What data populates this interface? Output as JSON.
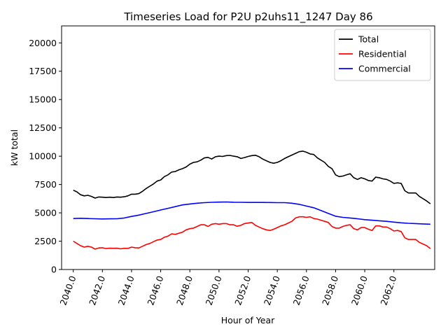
{
  "chart_data": {
    "type": "line",
    "title": "Timeseries Load for P2U p2uhs11_1247  Day 86",
    "xlabel": "Hour of Year",
    "ylabel": "kW total",
    "xlim": [
      2039.2,
      2064.8
    ],
    "ylim": [
      0,
      21500
    ],
    "x_ticks": [
      2040,
      2042,
      2044,
      2046,
      2048,
      2050,
      2052,
      2054,
      2056,
      2058,
      2060,
      2062
    ],
    "x_tick_labels": [
      "2040.0",
      "2042.0",
      "2044.0",
      "2046.0",
      "2048.0",
      "2050.0",
      "2052.0",
      "2054.0",
      "2056.0",
      "2058.0",
      "2060.0",
      "2062.0"
    ],
    "y_ticks": [
      0,
      2500,
      5000,
      7500,
      10000,
      12500,
      15000,
      17500,
      20000
    ],
    "y_tick_labels": [
      "0",
      "2500",
      "5000",
      "7500",
      "10000",
      "12500",
      "15000",
      "17500",
      "20000"
    ],
    "legend_position": "top-right",
    "series": [
      {
        "name": "Total",
        "color": "#000000",
        "points": [
          [
            2040.0,
            7000
          ],
          [
            2040.25,
            6850
          ],
          [
            2040.5,
            6600
          ],
          [
            2040.75,
            6500
          ],
          [
            2041.0,
            6550
          ],
          [
            2041.25,
            6450
          ],
          [
            2041.5,
            6300
          ],
          [
            2041.75,
            6400
          ],
          [
            2042.0,
            6380
          ],
          [
            2042.25,
            6350
          ],
          [
            2042.5,
            6380
          ],
          [
            2042.75,
            6350
          ],
          [
            2043.0,
            6400
          ],
          [
            2043.25,
            6380
          ],
          [
            2043.5,
            6420
          ],
          [
            2043.75,
            6500
          ],
          [
            2044.0,
            6650
          ],
          [
            2044.25,
            6650
          ],
          [
            2044.5,
            6700
          ],
          [
            2044.75,
            6900
          ],
          [
            2045.0,
            7150
          ],
          [
            2045.25,
            7350
          ],
          [
            2045.5,
            7550
          ],
          [
            2045.75,
            7800
          ],
          [
            2046.0,
            7900
          ],
          [
            2046.25,
            8200
          ],
          [
            2046.5,
            8350
          ],
          [
            2046.75,
            8600
          ],
          [
            2047.0,
            8650
          ],
          [
            2047.25,
            8800
          ],
          [
            2047.5,
            8900
          ],
          [
            2047.75,
            9050
          ],
          [
            2048.0,
            9300
          ],
          [
            2048.25,
            9450
          ],
          [
            2048.5,
            9500
          ],
          [
            2048.75,
            9650
          ],
          [
            2049.0,
            9850
          ],
          [
            2049.25,
            9900
          ],
          [
            2049.5,
            9750
          ],
          [
            2049.75,
            9950
          ],
          [
            2050.0,
            10000
          ],
          [
            2050.25,
            9980
          ],
          [
            2050.5,
            10050
          ],
          [
            2050.75,
            10070
          ],
          [
            2051.0,
            10000
          ],
          [
            2051.25,
            9950
          ],
          [
            2051.5,
            9800
          ],
          [
            2051.75,
            9880
          ],
          [
            2052.0,
            9980
          ],
          [
            2052.25,
            10050
          ],
          [
            2052.5,
            10080
          ],
          [
            2052.75,
            9950
          ],
          [
            2053.0,
            9750
          ],
          [
            2053.25,
            9600
          ],
          [
            2053.5,
            9450
          ],
          [
            2053.75,
            9380
          ],
          [
            2054.0,
            9450
          ],
          [
            2054.25,
            9600
          ],
          [
            2054.5,
            9800
          ],
          [
            2054.75,
            9950
          ],
          [
            2055.0,
            10100
          ],
          [
            2055.25,
            10250
          ],
          [
            2055.5,
            10400
          ],
          [
            2055.75,
            10450
          ],
          [
            2056.0,
            10350
          ],
          [
            2056.25,
            10200
          ],
          [
            2056.5,
            10150
          ],
          [
            2056.75,
            9850
          ],
          [
            2057.0,
            9650
          ],
          [
            2057.25,
            9450
          ],
          [
            2057.5,
            9100
          ],
          [
            2057.75,
            8900
          ],
          [
            2058.0,
            8350
          ],
          [
            2058.25,
            8200
          ],
          [
            2058.5,
            8250
          ],
          [
            2058.75,
            8350
          ],
          [
            2059.0,
            8450
          ],
          [
            2059.25,
            8100
          ],
          [
            2059.5,
            7950
          ],
          [
            2059.75,
            8100
          ],
          [
            2060.0,
            8000
          ],
          [
            2060.25,
            7850
          ],
          [
            2060.5,
            7800
          ],
          [
            2060.75,
            8150
          ],
          [
            2061.0,
            8100
          ],
          [
            2061.25,
            8000
          ],
          [
            2061.5,
            7950
          ],
          [
            2061.75,
            7800
          ],
          [
            2062.0,
            7600
          ],
          [
            2062.25,
            7650
          ],
          [
            2062.5,
            7600
          ],
          [
            2062.75,
            6950
          ],
          [
            2063.0,
            6750
          ],
          [
            2063.25,
            6750
          ],
          [
            2063.5,
            6750
          ],
          [
            2063.75,
            6450
          ],
          [
            2064.0,
            6250
          ],
          [
            2064.25,
            6050
          ],
          [
            2064.5,
            5800
          ]
        ]
      },
      {
        "name": "Residential",
        "color": "#ff0000",
        "points": [
          [
            2040.0,
            2500
          ],
          [
            2040.25,
            2300
          ],
          [
            2040.5,
            2100
          ],
          [
            2040.75,
            1980
          ],
          [
            2041.0,
            2050
          ],
          [
            2041.25,
            1980
          ],
          [
            2041.5,
            1800
          ],
          [
            2041.75,
            1900
          ],
          [
            2042.0,
            1920
          ],
          [
            2042.25,
            1850
          ],
          [
            2042.5,
            1880
          ],
          [
            2042.75,
            1870
          ],
          [
            2043.0,
            1880
          ],
          [
            2043.25,
            1820
          ],
          [
            2043.5,
            1870
          ],
          [
            2043.75,
            1860
          ],
          [
            2044.0,
            1980
          ],
          [
            2044.25,
            1920
          ],
          [
            2044.5,
            1900
          ],
          [
            2044.75,
            2050
          ],
          [
            2045.0,
            2200
          ],
          [
            2045.25,
            2300
          ],
          [
            2045.5,
            2450
          ],
          [
            2045.75,
            2600
          ],
          [
            2046.0,
            2650
          ],
          [
            2046.25,
            2850
          ],
          [
            2046.5,
            2950
          ],
          [
            2046.75,
            3150
          ],
          [
            2047.0,
            3100
          ],
          [
            2047.25,
            3200
          ],
          [
            2047.5,
            3300
          ],
          [
            2047.75,
            3500
          ],
          [
            2048.0,
            3600
          ],
          [
            2048.25,
            3650
          ],
          [
            2048.5,
            3800
          ],
          [
            2048.75,
            3950
          ],
          [
            2049.0,
            3950
          ],
          [
            2049.25,
            3800
          ],
          [
            2049.5,
            4000
          ],
          [
            2049.75,
            4050
          ],
          [
            2050.0,
            4000
          ],
          [
            2050.25,
            4050
          ],
          [
            2050.5,
            4050
          ],
          [
            2050.75,
            3950
          ],
          [
            2051.0,
            3950
          ],
          [
            2051.25,
            3820
          ],
          [
            2051.5,
            3900
          ],
          [
            2051.75,
            4050
          ],
          [
            2052.0,
            4100
          ],
          [
            2052.25,
            4150
          ],
          [
            2052.5,
            3900
          ],
          [
            2052.75,
            3750
          ],
          [
            2053.0,
            3600
          ],
          [
            2053.25,
            3500
          ],
          [
            2053.5,
            3450
          ],
          [
            2053.75,
            3550
          ],
          [
            2054.0,
            3700
          ],
          [
            2054.25,
            3850
          ],
          [
            2054.5,
            3950
          ],
          [
            2054.75,
            4100
          ],
          [
            2055.0,
            4250
          ],
          [
            2055.25,
            4550
          ],
          [
            2055.5,
            4650
          ],
          [
            2055.75,
            4650
          ],
          [
            2056.0,
            4600
          ],
          [
            2056.25,
            4650
          ],
          [
            2056.5,
            4500
          ],
          [
            2056.75,
            4450
          ],
          [
            2057.0,
            4350
          ],
          [
            2057.25,
            4250
          ],
          [
            2057.5,
            4150
          ],
          [
            2057.75,
            3800
          ],
          [
            2058.0,
            3650
          ],
          [
            2058.25,
            3650
          ],
          [
            2058.5,
            3800
          ],
          [
            2058.75,
            3900
          ],
          [
            2059.0,
            3950
          ],
          [
            2059.25,
            3600
          ],
          [
            2059.5,
            3500
          ],
          [
            2059.75,
            3700
          ],
          [
            2060.0,
            3700
          ],
          [
            2060.25,
            3550
          ],
          [
            2060.5,
            3450
          ],
          [
            2060.75,
            3850
          ],
          [
            2061.0,
            3850
          ],
          [
            2061.25,
            3750
          ],
          [
            2061.5,
            3750
          ],
          [
            2061.75,
            3600
          ],
          [
            2062.0,
            3400
          ],
          [
            2062.25,
            3450
          ],
          [
            2062.5,
            3350
          ],
          [
            2062.75,
            2800
          ],
          [
            2063.0,
            2650
          ],
          [
            2063.25,
            2650
          ],
          [
            2063.5,
            2650
          ],
          [
            2063.75,
            2400
          ],
          [
            2064.0,
            2250
          ],
          [
            2064.25,
            2100
          ],
          [
            2064.5,
            1850
          ]
        ]
      },
      {
        "name": "Commercial",
        "color": "#0000ff",
        "points": [
          [
            2040.0,
            4500
          ],
          [
            2040.5,
            4520
          ],
          [
            2041.0,
            4500
          ],
          [
            2041.5,
            4480
          ],
          [
            2042.0,
            4460
          ],
          [
            2042.5,
            4470
          ],
          [
            2043.0,
            4480
          ],
          [
            2043.5,
            4550
          ],
          [
            2044.0,
            4680
          ],
          [
            2044.5,
            4800
          ],
          [
            2045.0,
            4950
          ],
          [
            2045.5,
            5100
          ],
          [
            2046.0,
            5250
          ],
          [
            2046.5,
            5400
          ],
          [
            2047.0,
            5550
          ],
          [
            2047.5,
            5700
          ],
          [
            2048.0,
            5780
          ],
          [
            2048.5,
            5850
          ],
          [
            2049.0,
            5900
          ],
          [
            2049.5,
            5930
          ],
          [
            2050.0,
            5950
          ],
          [
            2050.5,
            5960
          ],
          [
            2051.0,
            5940
          ],
          [
            2051.5,
            5930
          ],
          [
            2052.0,
            5920
          ],
          [
            2052.5,
            5920
          ],
          [
            2053.0,
            5920
          ],
          [
            2053.5,
            5910
          ],
          [
            2054.0,
            5900
          ],
          [
            2054.5,
            5900
          ],
          [
            2055.0,
            5850
          ],
          [
            2055.5,
            5750
          ],
          [
            2056.0,
            5600
          ],
          [
            2056.5,
            5450
          ],
          [
            2057.0,
            5200
          ],
          [
            2057.5,
            4950
          ],
          [
            2058.0,
            4700
          ],
          [
            2058.5,
            4600
          ],
          [
            2059.0,
            4550
          ],
          [
            2059.5,
            4480
          ],
          [
            2060.0,
            4400
          ],
          [
            2060.5,
            4350
          ],
          [
            2061.0,
            4300
          ],
          [
            2061.5,
            4250
          ],
          [
            2062.0,
            4180
          ],
          [
            2062.5,
            4120
          ],
          [
            2063.0,
            4080
          ],
          [
            2063.5,
            4050
          ],
          [
            2064.0,
            4020
          ],
          [
            2064.5,
            4000
          ]
        ]
      }
    ]
  }
}
